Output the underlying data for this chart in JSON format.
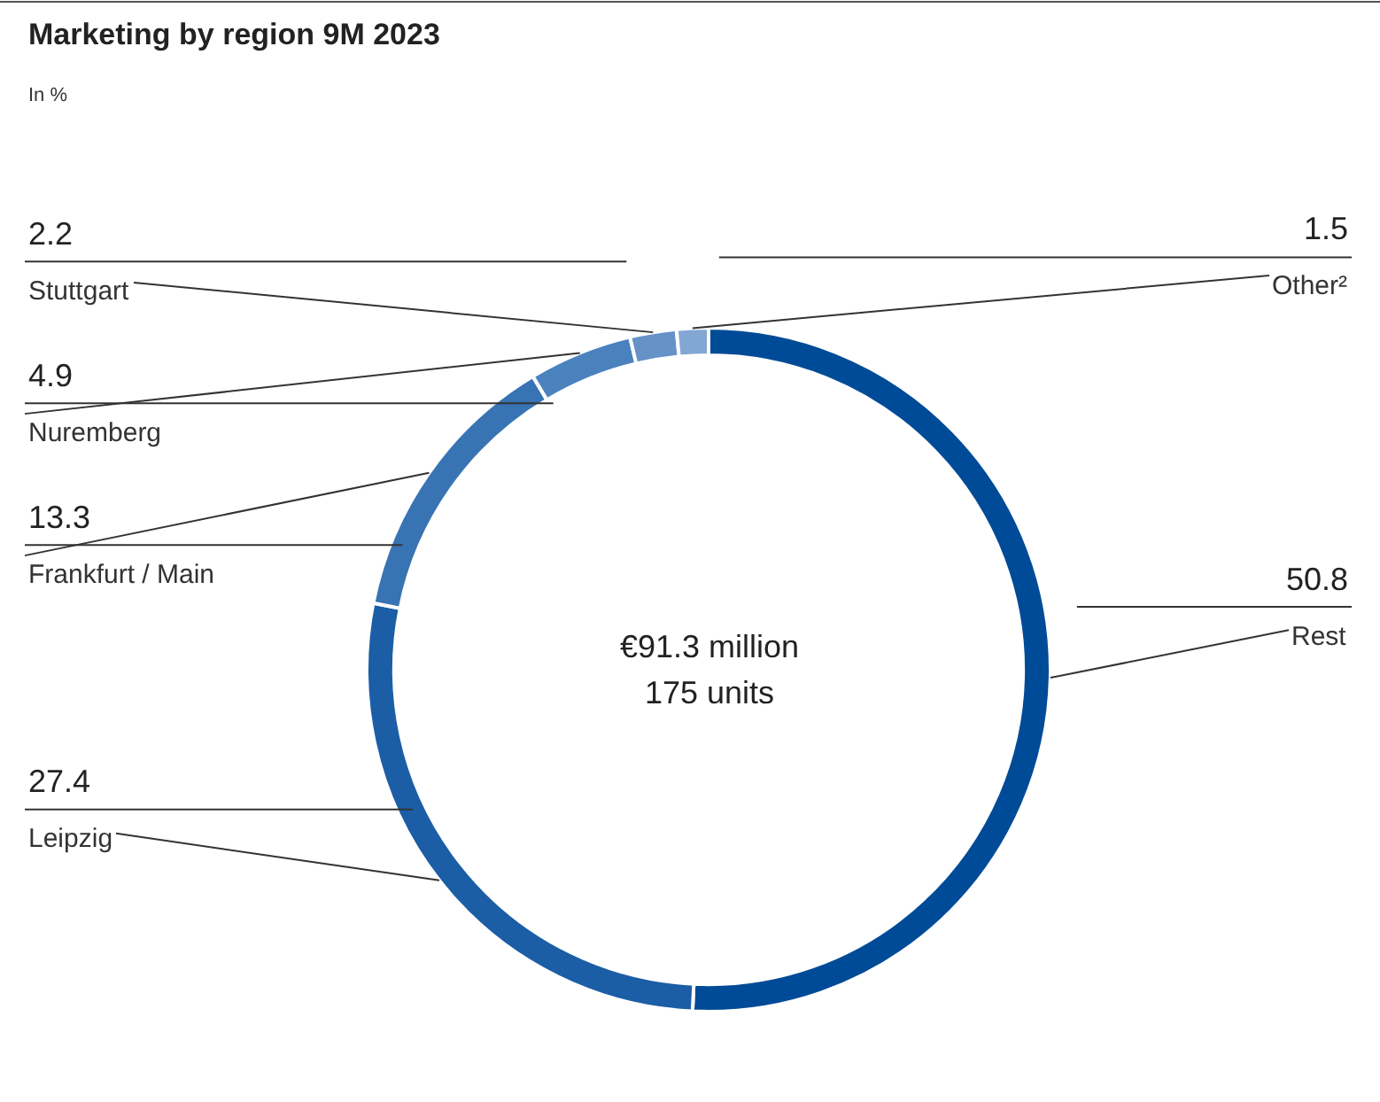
{
  "chart_data": {
    "type": "donut",
    "title": "Marketing by region 9M 2023",
    "subtitle": "In %",
    "categories": [
      "Rest",
      "Leipzig",
      "Frankfurt / Main",
      "Nuremberg",
      "Stuttgart",
      "Other²"
    ],
    "values": [
      50.8,
      27.4,
      13.3,
      4.9,
      2.2,
      1.5
    ],
    "colors": [
      "#004b97",
      "#1b5ea6",
      "#3873b3",
      "#4a82be",
      "#6692c8",
      "#82a7d4"
    ],
    "data_labels": true,
    "annotations": [
      "€91.3 million",
      "175 units"
    ]
  }
}
